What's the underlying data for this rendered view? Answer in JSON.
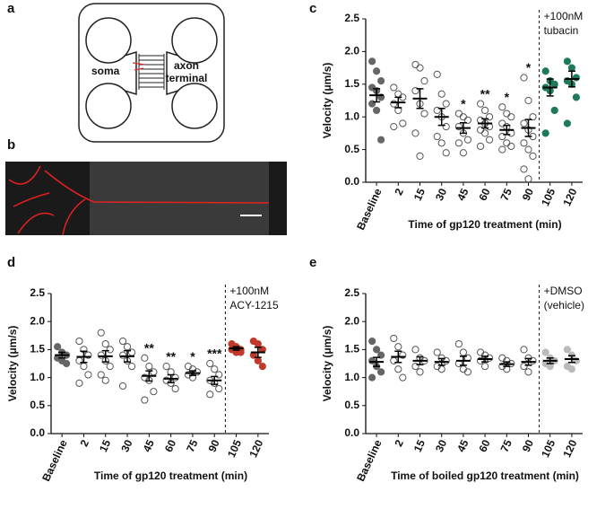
{
  "panel_a": {
    "label": "a",
    "left_text": "soma",
    "right_text": [
      "axon",
      "terminal"
    ]
  },
  "panel_b": {
    "label": "b"
  },
  "chart_data": [
    {
      "type": "dotplot",
      "panel_label": "c",
      "xlabel": "Time of gp120 treatment (min)",
      "ylabel": "Velocity (μm/s)",
      "annotation": [
        "+100nM",
        "tubacin"
      ],
      "categories": [
        "Baseline",
        "2",
        "15",
        "30",
        "45",
        "60",
        "75",
        "90",
        "105",
        "120"
      ],
      "points": [
        [
          1.85,
          1.7,
          1.55,
          1.45,
          1.4,
          1.3,
          1.2,
          1.1,
          0.65
        ],
        [
          1.45,
          1.35,
          1.3,
          1.2,
          1.1,
          0.9,
          0.85
        ],
        [
          1.8,
          1.75,
          1.55,
          1.4,
          1.2,
          1.05,
          0.75,
          0.4
        ],
        [
          1.65,
          1.35,
          1.2,
          1.1,
          1.0,
          0.85,
          0.7,
          0.6,
          0.45
        ],
        [
          1.05,
          1.0,
          0.95,
          0.85,
          0.75,
          0.65,
          0.6,
          0.45
        ],
        [
          1.2,
          1.1,
          1.0,
          0.95,
          0.9,
          0.85,
          0.8,
          0.75,
          0.65,
          0.55
        ],
        [
          1.15,
          1.05,
          1.0,
          0.9,
          0.85,
          0.75,
          0.7,
          0.6,
          0.55,
          0.5
        ],
        [
          1.6,
          1.25,
          1.0,
          0.9,
          0.8,
          0.7,
          0.6,
          0.5,
          0.4,
          0.2,
          0.05
        ],
        [
          1.7,
          1.55,
          1.5,
          1.45,
          1.4,
          1.1,
          0.75
        ],
        [
          1.85,
          1.75,
          1.6,
          1.55,
          1.5,
          1.3,
          0.9
        ]
      ],
      "means": [
        1.33,
        1.22,
        1.28,
        1.0,
        0.83,
        0.9,
        0.8,
        0.83,
        1.45,
        1.58
      ],
      "errors": [
        0.1,
        0.08,
        0.15,
        0.13,
        0.08,
        0.07,
        0.07,
        0.13,
        0.13,
        0.12
      ],
      "stars": [
        null,
        null,
        null,
        null,
        "*",
        "**",
        "*",
        "*",
        null,
        null
      ],
      "marker_fill": [
        "#666666",
        "none",
        "none",
        "none",
        "none",
        "none",
        "none",
        "none",
        "#1f7a5a",
        "#1f7a5a"
      ],
      "ylim": [
        0,
        2.5
      ],
      "yticks": [
        {
          "value": 0,
          "label": "0.0"
        },
        0.5,
        {
          "value": 1,
          "label": "1.0"
        },
        1.5,
        {
          "value": 2,
          "label": "2.0"
        },
        2.5
      ]
    },
    {
      "type": "dotplot",
      "panel_label": "d",
      "xlabel": "Time of gp120 treatment (min)",
      "ylabel": "Velocity (μm/s)",
      "annotation": [
        "+100nM",
        "ACY-1215"
      ],
      "categories": [
        "Baseline",
        "2",
        "15",
        "30",
        "45",
        "60",
        "75",
        "90",
        "105",
        "120"
      ],
      "points": [
        [
          1.55,
          1.45,
          1.4,
          1.35,
          1.3,
          1.25
        ],
        [
          1.65,
          1.5,
          1.4,
          1.3,
          1.2,
          1.05,
          0.9
        ],
        [
          1.8,
          1.6,
          1.5,
          1.4,
          1.3,
          1.2,
          1.05,
          0.95
        ],
        [
          1.65,
          1.55,
          1.45,
          1.4,
          1.3,
          1.2,
          0.85
        ],
        [
          1.35,
          1.2,
          1.1,
          1.0,
          0.95,
          0.75,
          0.6
        ],
        [
          1.2,
          1.1,
          1.0,
          0.95,
          0.9,
          0.8
        ],
        [
          1.2,
          1.15,
          1.1,
          1.05,
          1.0
        ],
        [
          1.25,
          1.15,
          1.05,
          0.95,
          0.9,
          0.8,
          0.7
        ],
        [
          1.6,
          1.55,
          1.5,
          1.5,
          1.45,
          1.45
        ],
        [
          1.65,
          1.6,
          1.5,
          1.4,
          1.3,
          1.2
        ]
      ],
      "means": [
        1.4,
        1.37,
        1.38,
        1.38,
        1.03,
        0.98,
        1.08,
        0.95,
        1.52,
        1.45
      ],
      "errors": [
        0.05,
        0.1,
        0.1,
        0.1,
        0.09,
        0.07,
        0.04,
        0.07,
        0.03,
        0.09
      ],
      "stars": [
        null,
        null,
        null,
        null,
        "**",
        "**",
        "*",
        "***",
        null,
        null
      ],
      "marker_fill": [
        "#666666",
        "none",
        "none",
        "none",
        "none",
        "none",
        "none",
        "none",
        "#c0392b",
        "#c0392b"
      ],
      "ylim": [
        0,
        2.5
      ],
      "yticks": [
        {
          "value": 0,
          "label": "0.0"
        },
        0.5,
        {
          "value": 1,
          "label": "1.0"
        },
        1.5,
        {
          "value": 2,
          "label": "2.0"
        },
        2.5
      ]
    },
    {
      "type": "dotplot",
      "panel_label": "e",
      "xlabel": "Time of boiled gp120 treatment (min)",
      "ylabel": "Velocity  (μm/s)",
      "annotation": [
        "+DMSO",
        "(vehicle)"
      ],
      "categories": [
        "Baseline",
        "2",
        "15",
        "30",
        "45",
        "60",
        "75",
        "90",
        "105",
        "120"
      ],
      "points": [
        [
          1.65,
          1.5,
          1.4,
          1.3,
          1.2,
          1.1,
          1.0
        ],
        [
          1.7,
          1.55,
          1.4,
          1.3,
          1.15,
          1.0
        ],
        [
          1.5,
          1.35,
          1.3,
          1.2,
          1.1
        ],
        [
          1.45,
          1.35,
          1.3,
          1.2,
          1.15
        ],
        [
          1.6,
          1.45,
          1.35,
          1.25,
          1.15,
          1.1
        ],
        [
          1.45,
          1.4,
          1.35,
          1.3,
          1.2
        ],
        [
          1.35,
          1.3,
          1.25,
          1.2,
          1.15
        ],
        [
          1.5,
          1.35,
          1.3,
          1.2,
          1.1
        ],
        [
          1.45,
          1.35,
          1.3,
          1.25,
          1.2
        ],
        [
          1.5,
          1.4,
          1.3,
          1.2,
          1.15
        ]
      ],
      "means": [
        1.28,
        1.37,
        1.3,
        1.28,
        1.3,
        1.33,
        1.24,
        1.28,
        1.3,
        1.33
      ],
      "errors": [
        0.08,
        0.1,
        0.07,
        0.06,
        0.08,
        0.05,
        0.04,
        0.06,
        0.05,
        0.06
      ],
      "stars": [
        null,
        null,
        null,
        null,
        null,
        null,
        null,
        null,
        null,
        null
      ],
      "marker_fill": [
        "#666666",
        "none",
        "none",
        "none",
        "none",
        "none",
        "none",
        "none",
        "#bbbbbb",
        "#bbbbbb"
      ],
      "ylim": [
        0,
        2.5
      ],
      "yticks": [
        {
          "value": 0,
          "label": "0.0"
        },
        0.5,
        {
          "value": 1,
          "label": "1.0"
        },
        1.5,
        {
          "value": 2,
          "label": "2.0"
        },
        2.5
      ]
    }
  ]
}
